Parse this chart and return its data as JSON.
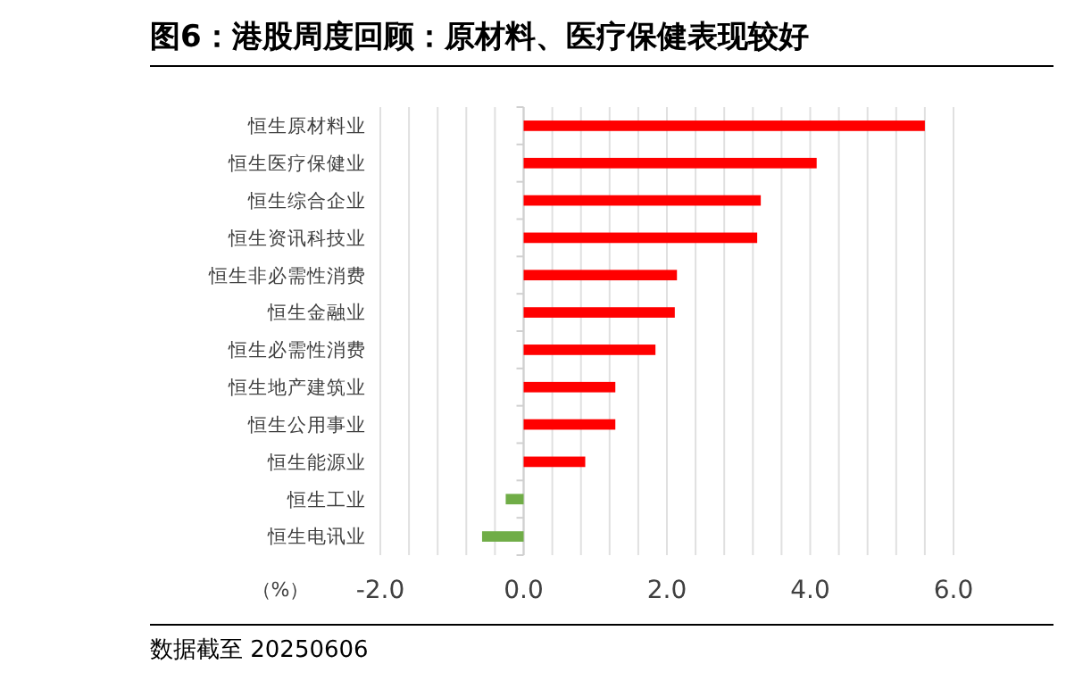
{
  "chart_data": {
    "type": "bar",
    "orientation": "horizontal",
    "title": "图6：港股周度回顾：原材料、医疗保健表现较好",
    "xlabel": "（%）",
    "categories": [
      "恒生原材料业",
      "恒生医疗保健业",
      "恒生综合企业",
      "恒生资讯科技业",
      "恒生非必需性消费",
      "恒生金融业",
      "恒生必需性消费",
      "恒生地产建筑业",
      "恒生公用事业",
      "恒生能源业",
      "恒生工业",
      "恒生电讯业"
    ],
    "values": [
      5.6,
      4.09,
      3.31,
      3.26,
      2.14,
      2.11,
      1.84,
      1.28,
      1.28,
      0.86,
      -0.25,
      -0.58
    ],
    "colors": [
      "#ff0000",
      "#ff0000",
      "#ff0000",
      "#ff0000",
      "#ff0000",
      "#ff0000",
      "#ff0000",
      "#ff0000",
      "#ff0000",
      "#ff0000",
      "#70ad47",
      "#70ad47"
    ],
    "xlim": [
      -2,
      6
    ],
    "xticks": [
      {
        "value": -2,
        "label": "-2.0"
      },
      {
        "value": -1.6,
        "label": null
      },
      {
        "value": -1.2,
        "label": null
      },
      {
        "value": -0.8,
        "label": null
      },
      {
        "value": -0.4,
        "label": null
      },
      {
        "value": 0,
        "label": "0.0"
      },
      {
        "value": 0.4,
        "label": null
      },
      {
        "value": 0.8,
        "label": null
      },
      {
        "value": 1.2,
        "label": null
      },
      {
        "value": 1.6,
        "label": null
      },
      {
        "value": 2,
        "label": "2.0"
      },
      {
        "value": 2.4,
        "label": null
      },
      {
        "value": 2.8,
        "label": null
      },
      {
        "value": 3.2,
        "label": null
      },
      {
        "value": 3.6,
        "label": null
      },
      {
        "value": 4,
        "label": "4.0"
      },
      {
        "value": 4.4,
        "label": null
      },
      {
        "value": 4.8,
        "label": null
      },
      {
        "value": 5.2,
        "label": null
      },
      {
        "value": 5.6,
        "label": null
      },
      {
        "value": 6,
        "label": "6.0"
      }
    ],
    "grid": "x",
    "annotations": [
      "数据截至 20250606"
    ]
  }
}
